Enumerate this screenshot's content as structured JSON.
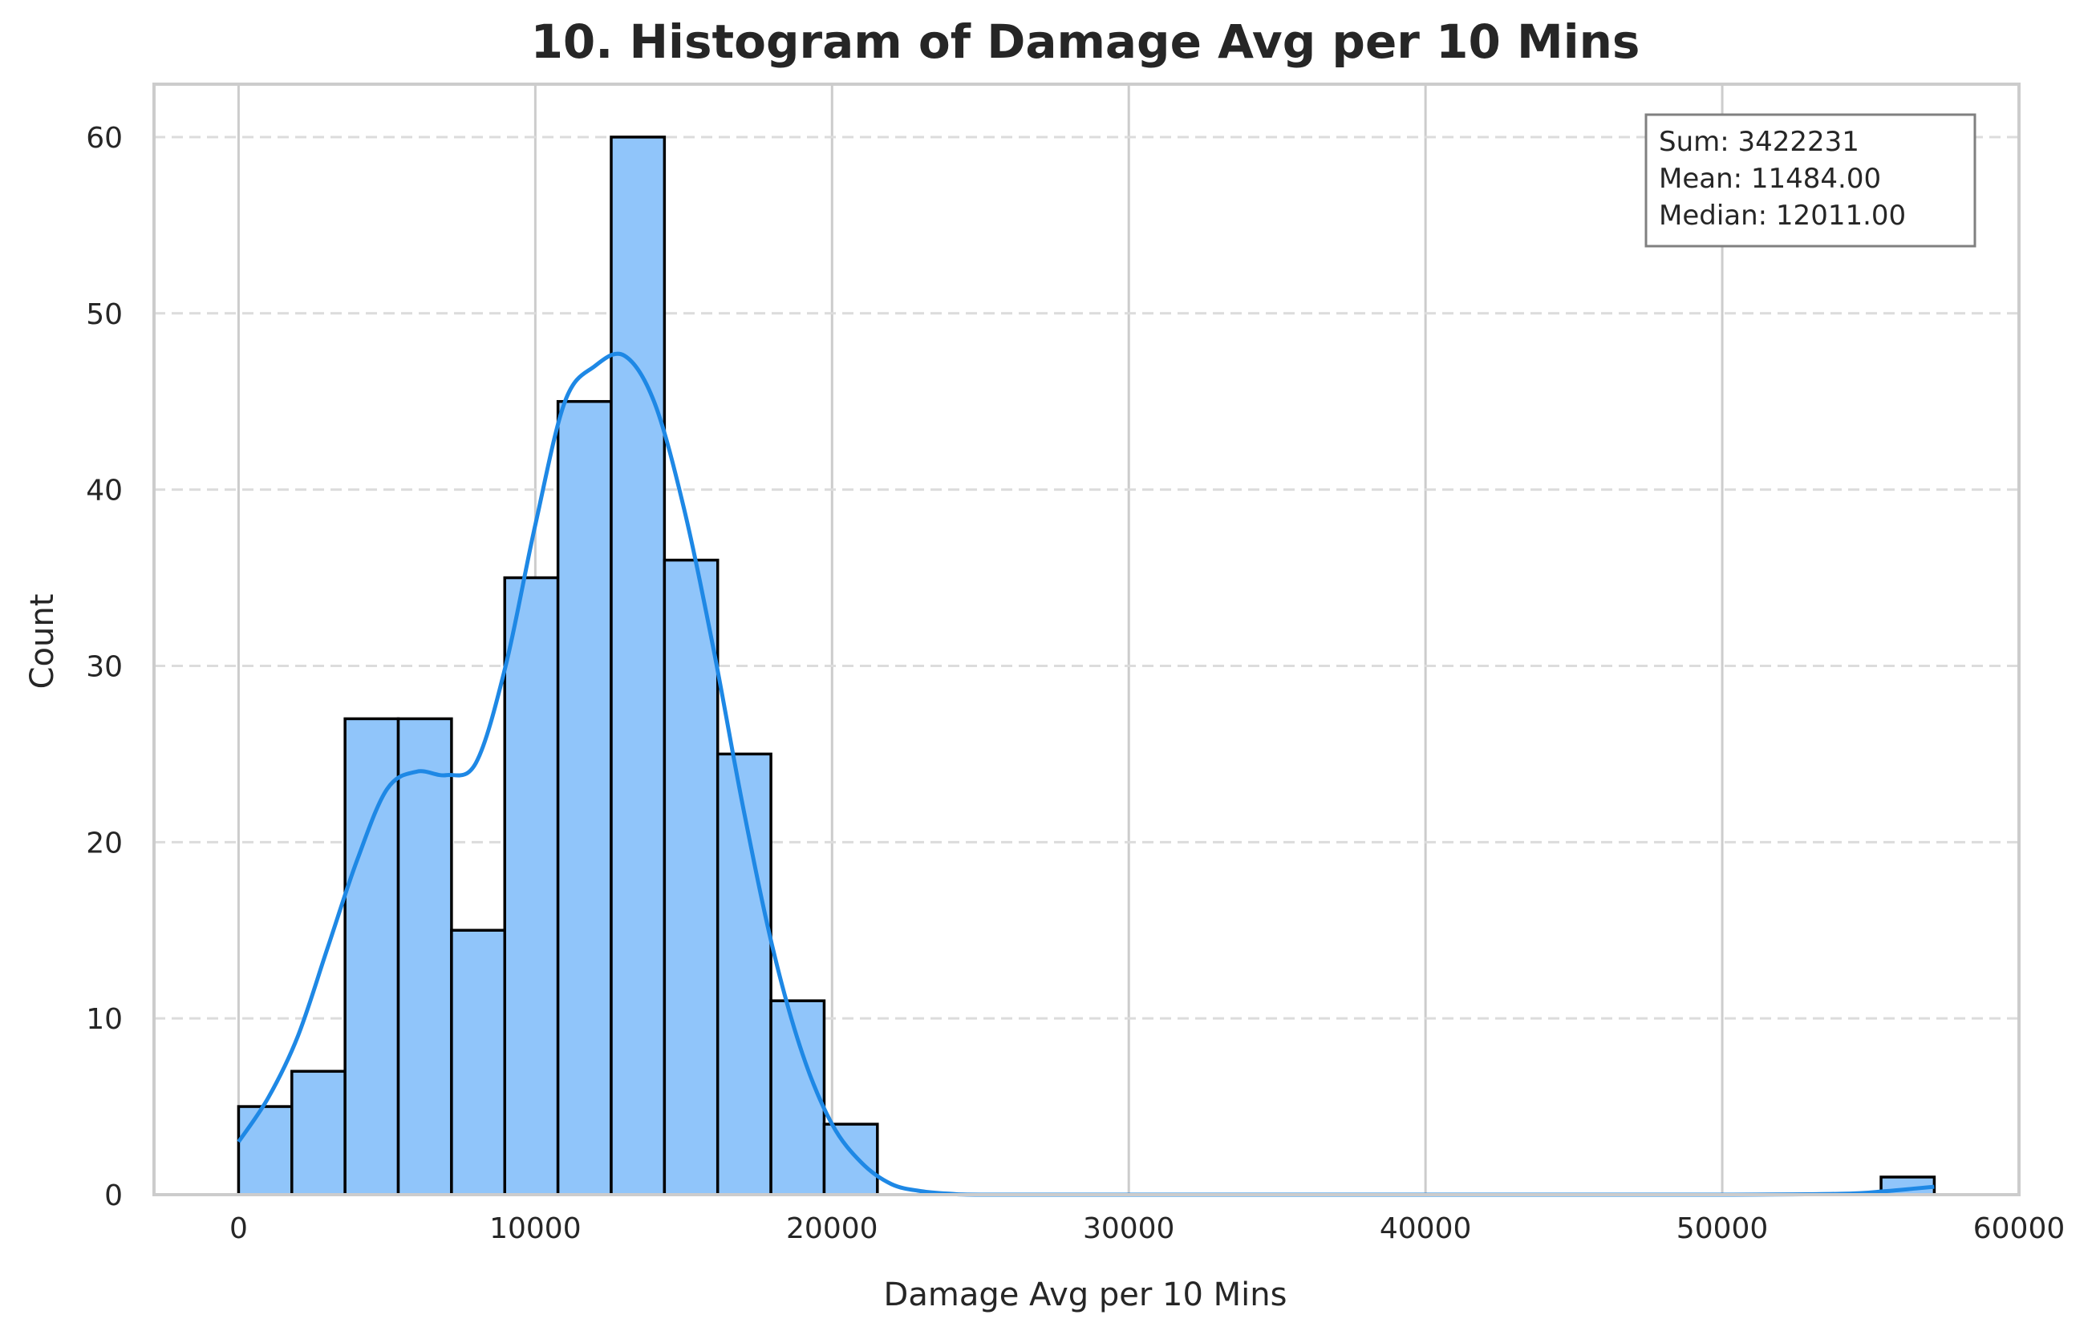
{
  "chart_data": {
    "type": "bar",
    "title": "10. Histogram of Damage Avg per 10 Mins",
    "xlabel": "Damage Avg per 10 Mins",
    "ylabel": "Count",
    "xlim": [
      -2850,
      60000
    ],
    "ylim": [
      0,
      63
    ],
    "xticks": [
      "0",
      "10000",
      "20000",
      "30000",
      "40000",
      "50000",
      "60000"
    ],
    "yticks": [
      "0",
      "10",
      "20",
      "30",
      "40",
      "50",
      "60"
    ],
    "grid": true,
    "bar_color": "#90c5fa",
    "bar_edge_color": "#000000",
    "kde_color": "#1e88e5",
    "bins": [
      {
        "x0": 0,
        "x1": 1794,
        "count": 5
      },
      {
        "x0": 1794,
        "x1": 3588,
        "count": 7
      },
      {
        "x0": 3588,
        "x1": 5382,
        "count": 27
      },
      {
        "x0": 5382,
        "x1": 7176,
        "count": 27
      },
      {
        "x0": 7176,
        "x1": 8970,
        "count": 15
      },
      {
        "x0": 8970,
        "x1": 10764,
        "count": 35
      },
      {
        "x0": 10764,
        "x1": 12558,
        "count": 45
      },
      {
        "x0": 12558,
        "x1": 14352,
        "count": 60
      },
      {
        "x0": 14352,
        "x1": 16146,
        "count": 36
      },
      {
        "x0": 16146,
        "x1": 17940,
        "count": 25
      },
      {
        "x0": 17940,
        "x1": 19734,
        "count": 11
      },
      {
        "x0": 19734,
        "x1": 21528,
        "count": 4
      },
      {
        "x0": 55352,
        "x1": 57146,
        "count": 1
      }
    ],
    "kde": {
      "x": [
        0,
        1000,
        2000,
        3000,
        4000,
        5000,
        6000,
        7000,
        8000,
        9000,
        10000,
        11000,
        12000,
        13000,
        14000,
        15000,
        16000,
        17000,
        18000,
        19000,
        20000,
        21000,
        22000,
        23000,
        24000,
        25000,
        30000,
        40000,
        50000,
        54000,
        55500,
        56500,
        57146
      ],
      "y": [
        3,
        5.5,
        9,
        14,
        19,
        23,
        24,
        23.8,
        24.5,
        30,
        38,
        45,
        47,
        47.6,
        45,
        39,
        31,
        22,
        14,
        8,
        4,
        1.8,
        0.6,
        0.2,
        0.05,
        0,
        0,
        0,
        0,
        0.05,
        0.2,
        0.35,
        0.45
      ]
    },
    "stats": {
      "sum": "Sum: 3422231",
      "mean": "Mean: 11484.00",
      "median": "Median: 12011.00"
    }
  }
}
